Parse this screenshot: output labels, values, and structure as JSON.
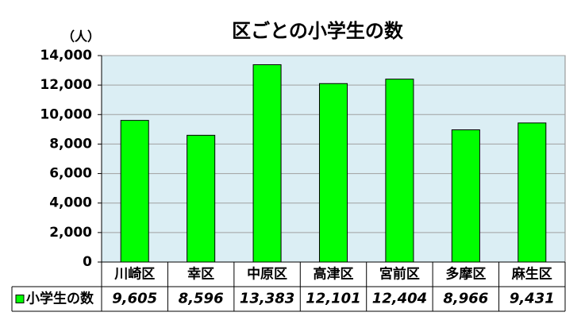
{
  "chart_data": {
    "type": "bar",
    "title": "区ごとの小学生の数",
    "y_label": "（人）",
    "categories": [
      "川崎区",
      "幸区",
      "中原区",
      "高津区",
      "宮前区",
      "多摩区",
      "麻生区"
    ],
    "series": [
      {
        "name": "小学生の数",
        "color": "#00ff00",
        "values": [
          9605,
          8596,
          13383,
          12101,
          12404,
          8966,
          9431
        ],
        "value_labels": [
          "9,605",
          "8,596",
          "13,383",
          "12,101",
          "12,404",
          "8,966",
          "9,431"
        ]
      }
    ],
    "ylim": [
      0,
      14000
    ],
    "yticks": [
      0,
      {
        "value": 2000,
        "label": "2,000"
      },
      {
        "value": 4000,
        "label": "4,000"
      },
      {
        "value": 6000,
        "label": "6,000"
      },
      {
        "value": 8000,
        "label": "8,000"
      },
      {
        "value": 10000,
        "label": "10,000"
      },
      {
        "value": 12000,
        "label": "12,000"
      },
      {
        "value": 14000,
        "label": "14,000"
      }
    ],
    "grid": true
  }
}
